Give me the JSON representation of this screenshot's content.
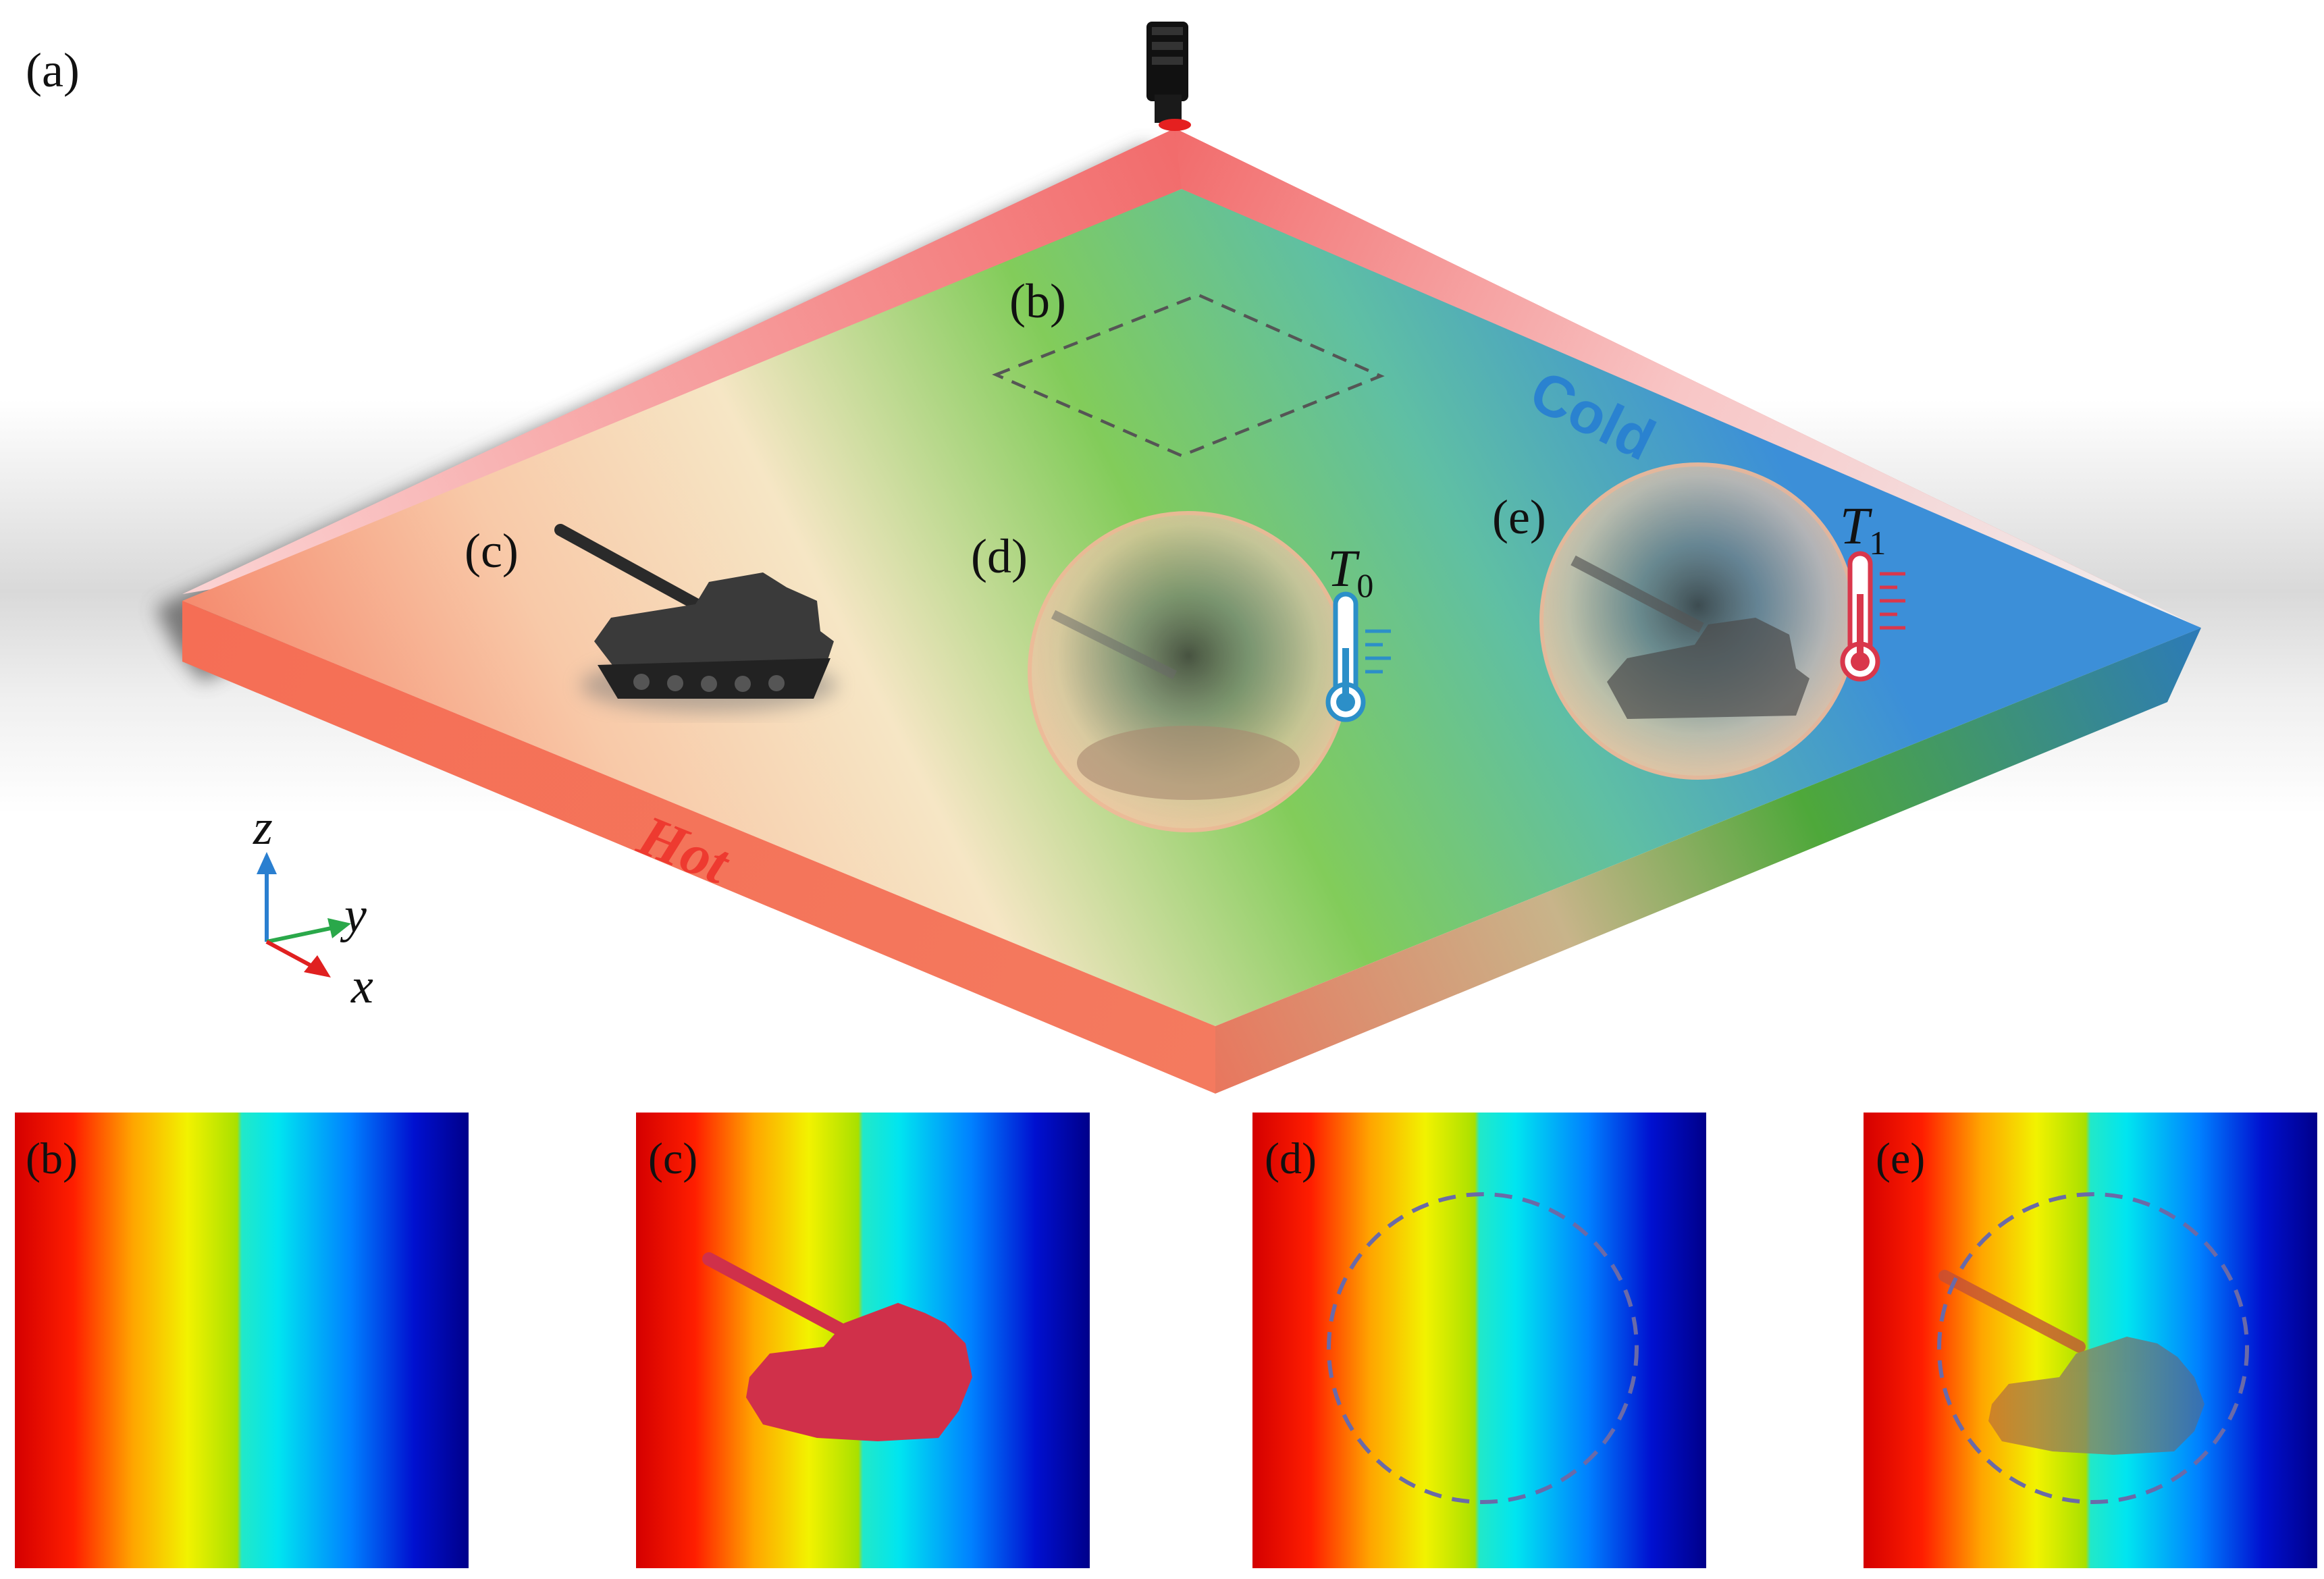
{
  "top_panel": {
    "label": "(a)",
    "hot_text": "Hot",
    "cold_text": "Cold",
    "region_labels": {
      "b": "(b)",
      "c": "(c)",
      "d": "(d)",
      "e": "(e)"
    },
    "thermometer_d": {
      "symbol": "T",
      "subscript": "0",
      "color": "#2c8fc8"
    },
    "thermometer_e": {
      "symbol": "T",
      "subscript": "1",
      "color": "#d9374b"
    },
    "axes": {
      "z": "z",
      "y": "y",
      "x": "x"
    },
    "colors": {
      "hot": "#f47a5f",
      "cold": "#3c8fd8",
      "mid": "#7cc95a",
      "warm": "#f7e4c4"
    }
  },
  "bottom_panels": [
    {
      "label": "(b)",
      "content": "uniform field"
    },
    {
      "label": "(c)",
      "content": "tank hotspot"
    },
    {
      "label": "(d)",
      "content": "dashed circle"
    },
    {
      "label": "(e)",
      "content": "dashed circle with cloaked tank"
    }
  ],
  "field_colors": [
    "#d40000",
    "#ff1e00",
    "#ffa500",
    "#f2f200",
    "#a8e000",
    "#22e8c8",
    "#00e5f0",
    "#0080ff",
    "#0010d0",
    "#00008a"
  ]
}
